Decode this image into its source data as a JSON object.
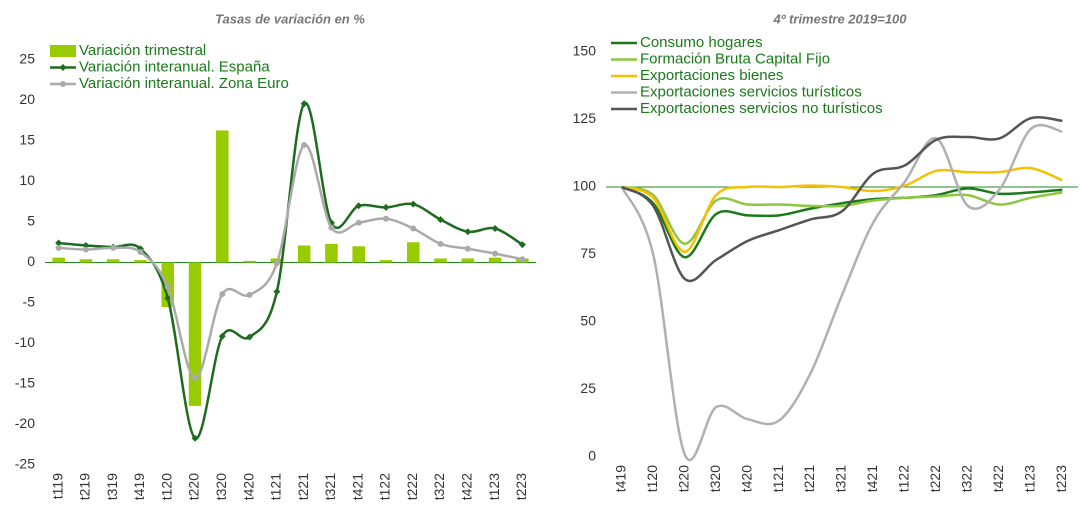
{
  "chart_data": [
    {
      "type": "combo",
      "title": "Tasas de variación en %",
      "categories": [
        "t119",
        "t219",
        "t319",
        "t419",
        "t120",
        "t220",
        "t320",
        "t420",
        "t121",
        "t221",
        "t321",
        "t421",
        "t122",
        "t222",
        "t322",
        "t422",
        "t123",
        "t223"
      ],
      "series": [
        {
          "name": "Variación trimestral",
          "type": "bar",
          "color": "#99cc00",
          "values": [
            0.6,
            0.4,
            0.4,
            0.3,
            -5.5,
            -17.7,
            16.3,
            0.2,
            0.5,
            2.1,
            2.3,
            2.0,
            0.3,
            2.5,
            0.5,
            0.5,
            0.6,
            0.5
          ]
        },
        {
          "name": "Variación interanual. España",
          "type": "line",
          "marker": "diamond",
          "color": "#1f6b1f",
          "values": [
            2.4,
            2.1,
            1.9,
            1.7,
            -4.4,
            -21.7,
            -9.1,
            -9.2,
            -3.6,
            19.6,
            4.9,
            7.0,
            6.8,
            7.2,
            5.3,
            3.8,
            4.2,
            2.2
          ]
        },
        {
          "name": "Variación interanual. Zona Euro",
          "type": "line",
          "marker": "circle",
          "color": "#aaaaaa",
          "values": [
            1.8,
            1.6,
            1.8,
            1.3,
            -3.0,
            -14.3,
            -3.9,
            -4.0,
            -0.1,
            14.5,
            4.3,
            4.9,
            5.4,
            4.2,
            2.3,
            1.7,
            1.1,
            0.4
          ]
        }
      ],
      "ylim": [
        -25,
        25
      ],
      "yticks": [
        -25,
        -20,
        -15,
        -10,
        -5,
        0,
        5,
        10,
        15,
        20,
        25
      ],
      "hline": 0,
      "hline_color": "#1f8a1f",
      "legend": "top-left"
    },
    {
      "type": "line",
      "title": "4º trimestre 2019=100",
      "categories": [
        "t419",
        "t120",
        "t220",
        "t320",
        "t420",
        "t121",
        "t221",
        "t321",
        "t421",
        "t122",
        "t222",
        "t322",
        "t422",
        "t123",
        "t223"
      ],
      "series": [
        {
          "name": "Consumo hogares",
          "color": "#1a7a1a",
          "values": [
            100,
            94,
            74,
            90,
            89.5,
            89.5,
            92,
            94,
            95.5,
            96,
            97,
            99.5,
            97.5,
            98,
            99
          ]
        },
        {
          "name": "Formación Bruta Capital Fijo",
          "color": "#8dc63f",
          "values": [
            100,
            97,
            79,
            95,
            93.5,
            93.5,
            93,
            93,
            95,
            96,
            96.5,
            97,
            93.5,
            96,
            98
          ]
        },
        {
          "name": "Exportaciones bienes",
          "color": "#f5c000",
          "values": [
            100,
            96,
            76,
            97,
            100,
            100,
            100.5,
            100,
            98.5,
            100.5,
            106,
            105.5,
            105.5,
            107,
            102.5
          ]
        },
        {
          "name": "Exportaciones servicios turísticos",
          "color": "#b0b0b0",
          "values": [
            100,
            75,
            1,
            18.5,
            14,
            13.5,
            31,
            60,
            87,
            102,
            118,
            93,
            99,
            121.5,
            120.5
          ]
        },
        {
          "name": "Exportaciones servicios no turísticos",
          "color": "#555555",
          "values": [
            100,
            93,
            66,
            73,
            80,
            84,
            88,
            91,
            105,
            108,
            117.5,
            118.5,
            118,
            125.5,
            124.5
          ]
        }
      ],
      "ylim": [
        0,
        150
      ],
      "yticks": [
        0,
        25,
        50,
        75,
        100,
        125,
        150
      ],
      "hline": 100,
      "hline_color": "#1f8a1f",
      "legend": "top-left"
    }
  ]
}
